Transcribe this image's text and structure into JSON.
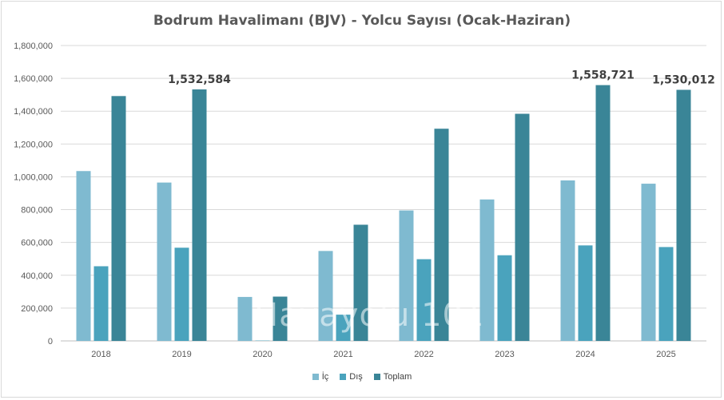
{
  "chart_data": {
    "type": "bar",
    "title": "Bodrum Havalimanı (BJV) - Yolcu Sayısı (Ocak-Haziran)",
    "categories": [
      "2018",
      "2019",
      "2020",
      "2021",
      "2022",
      "2023",
      "2024",
      "2025"
    ],
    "series": [
      {
        "name": "İç",
        "color": "#7fbad0",
        "values": [
          1035000,
          965000,
          268000,
          548000,
          795000,
          862000,
          978000,
          958000
        ]
      },
      {
        "name": "Dış",
        "color": "#4aa3bd",
        "values": [
          455000,
          568000,
          2000,
          160000,
          498000,
          522000,
          582000,
          572000
        ]
      },
      {
        "name": "Toplam",
        "color": "#3a8597",
        "values": [
          1492000,
          1532584,
          270000,
          708000,
          1293000,
          1384000,
          1558721,
          1530012
        ]
      }
    ],
    "data_labels": [
      {
        "category": "2019",
        "series": "Toplam",
        "text": "1,532,584"
      },
      {
        "category": "2024",
        "series": "Toplam",
        "text": "1,558,721"
      },
      {
        "category": "2025",
        "series": "Toplam",
        "text": "1,530,012"
      }
    ],
    "y_ticks": [
      "0",
      "200,000",
      "400,000",
      "600,000",
      "800,000",
      "1,000,000",
      "1,200,000",
      "1,400,000",
      "1,600,000",
      "1,800,000"
    ],
    "ylim": [
      0,
      1800000
    ],
    "xlabel": "",
    "ylabel": "",
    "grid": true,
    "legend_position": "bottom",
    "watermark": "Havayolu 101"
  }
}
